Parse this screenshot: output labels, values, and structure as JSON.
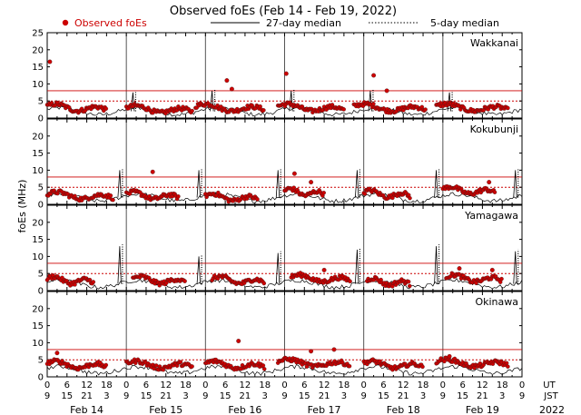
{
  "chart_data": {
    "type": "scatter",
    "title": "Observed foEs (Feb 14 - Feb 19, 2022)",
    "ylabel": "foEs (MHz)",
    "ylim": [
      0,
      25
    ],
    "yticks": [
      0,
      5,
      10,
      15,
      20,
      25
    ],
    "xlim_hours_ut": [
      0,
      144
    ],
    "ut_tick_labels": [
      "0",
      "6",
      "12",
      "18",
      "0",
      "6",
      "12",
      "18",
      "0",
      "6",
      "12",
      "18",
      "0",
      "6",
      "12",
      "18",
      "0",
      "6",
      "12",
      "18",
      "0",
      "6",
      "12",
      "18",
      "0"
    ],
    "jst_tick_labels": [
      "9",
      "15",
      "21",
      "3",
      "9",
      "15",
      "21",
      "3",
      "9",
      "15",
      "21",
      "3",
      "9",
      "15",
      "21",
      "3",
      "9",
      "15",
      "21",
      "3",
      "9",
      "15",
      "21",
      "3",
      "9"
    ],
    "ut_label": "UT",
    "jst_label": "JST",
    "dates": [
      "Feb 14",
      "Feb 15",
      "Feb 16",
      "Feb 17",
      "Feb 18",
      "Feb 19"
    ],
    "year": "2022",
    "legend": {
      "observed": "Observed foEs",
      "median27": "27-day median",
      "median5": "5-day median"
    },
    "threshold_lines_mhz": [
      5,
      8
    ],
    "observed_color": "#cc0000",
    "stations": [
      {
        "name": "Wakkanai",
        "observed_segments": [
          {
            "start_h": 0,
            "end_h": 18,
            "base_mhz": 3.5
          },
          {
            "start_h": 24,
            "end_h": 44,
            "base_mhz": 3.0
          },
          {
            "start_h": 45,
            "end_h": 66,
            "base_mhz": 3.5
          },
          {
            "start_h": 70,
            "end_h": 90,
            "base_mhz": 3.5
          },
          {
            "start_h": 93,
            "end_h": 115,
            "base_mhz": 3.5
          },
          {
            "start_h": 118,
            "end_h": 140,
            "base_mhz": 3.5
          }
        ],
        "spikes": [
          {
            "h": 0.8,
            "mhz": 16.5
          },
          {
            "h": 54.5,
            "mhz": 11.0
          },
          {
            "h": 56,
            "mhz": 8.5
          },
          {
            "h": 72.5,
            "mhz": 13.0
          },
          {
            "h": 99,
            "mhz": 12.5
          },
          {
            "h": 103,
            "mhz": 8.0
          }
        ],
        "median_peaks": [
          {
            "h": 26,
            "mhz": 7.5
          },
          {
            "h": 50,
            "mhz": 8.0
          },
          {
            "h": 74,
            "mhz": 8.0
          },
          {
            "h": 98,
            "mhz": 8.0
          },
          {
            "h": 122,
            "mhz": 7.5
          }
        ]
      },
      {
        "name": "Kokubunji",
        "observed_segments": [
          {
            "start_h": 0,
            "end_h": 20,
            "base_mhz": 3.0
          },
          {
            "start_h": 24,
            "end_h": 40,
            "base_mhz": 3.0
          },
          {
            "start_h": 48,
            "end_h": 64,
            "base_mhz": 2.5
          },
          {
            "start_h": 72,
            "end_h": 84,
            "base_mhz": 4.0
          },
          {
            "start_h": 96,
            "end_h": 110,
            "base_mhz": 3.5
          },
          {
            "start_h": 120,
            "end_h": 136,
            "base_mhz": 4.5
          }
        ],
        "spikes": [
          {
            "h": 32,
            "mhz": 9.5
          },
          {
            "h": 75,
            "mhz": 9.0
          },
          {
            "h": 80,
            "mhz": 6.5
          },
          {
            "h": 134,
            "mhz": 6.5
          }
        ],
        "median_peaks": [
          {
            "h": 22,
            "mhz": 10.0
          },
          {
            "h": 46,
            "mhz": 10.0
          },
          {
            "h": 70,
            "mhz": 10.0
          },
          {
            "h": 94,
            "mhz": 10.0
          },
          {
            "h": 118,
            "mhz": 10.0
          },
          {
            "h": 142,
            "mhz": 10.0
          }
        ]
      },
      {
        "name": "Yamagawa",
        "observed_segments": [
          {
            "start_h": 0,
            "end_h": 14,
            "base_mhz": 3.5
          },
          {
            "start_h": 26,
            "end_h": 42,
            "base_mhz": 3.5
          },
          {
            "start_h": 50,
            "end_h": 66,
            "base_mhz": 3.5
          },
          {
            "start_h": 74,
            "end_h": 92,
            "base_mhz": 4.0
          },
          {
            "start_h": 97,
            "end_h": 110,
            "base_mhz": 3.0
          },
          {
            "start_h": 121,
            "end_h": 138,
            "base_mhz": 4.0
          }
        ],
        "spikes": [
          {
            "h": 84,
            "mhz": 6.0
          },
          {
            "h": 125,
            "mhz": 6.5
          },
          {
            "h": 135,
            "mhz": 6.0
          }
        ],
        "median_peaks": [
          {
            "h": 22,
            "mhz": 13.0
          },
          {
            "h": 46,
            "mhz": 10.0
          },
          {
            "h": 70,
            "mhz": 11.0
          },
          {
            "h": 94,
            "mhz": 12.0
          },
          {
            "h": 118,
            "mhz": 13.0
          },
          {
            "h": 142,
            "mhz": 11.5
          }
        ]
      },
      {
        "name": "Okinawa",
        "observed_segments": [
          {
            "start_h": 0,
            "end_h": 18,
            "base_mhz": 4.0
          },
          {
            "start_h": 24,
            "end_h": 44,
            "base_mhz": 4.0
          },
          {
            "start_h": 48,
            "end_h": 66,
            "base_mhz": 4.0
          },
          {
            "start_h": 70,
            "end_h": 92,
            "base_mhz": 4.5
          },
          {
            "start_h": 96,
            "end_h": 114,
            "base_mhz": 4.0
          },
          {
            "start_h": 118,
            "end_h": 140,
            "base_mhz": 4.5
          }
        ],
        "spikes": [
          {
            "h": 3,
            "mhz": 7.0
          },
          {
            "h": 58,
            "mhz": 10.5
          },
          {
            "h": 80,
            "mhz": 7.5
          },
          {
            "h": 87,
            "mhz": 8.0
          },
          {
            "h": 122,
            "mhz": 6.0
          }
        ],
        "median_peaks": []
      }
    ]
  }
}
